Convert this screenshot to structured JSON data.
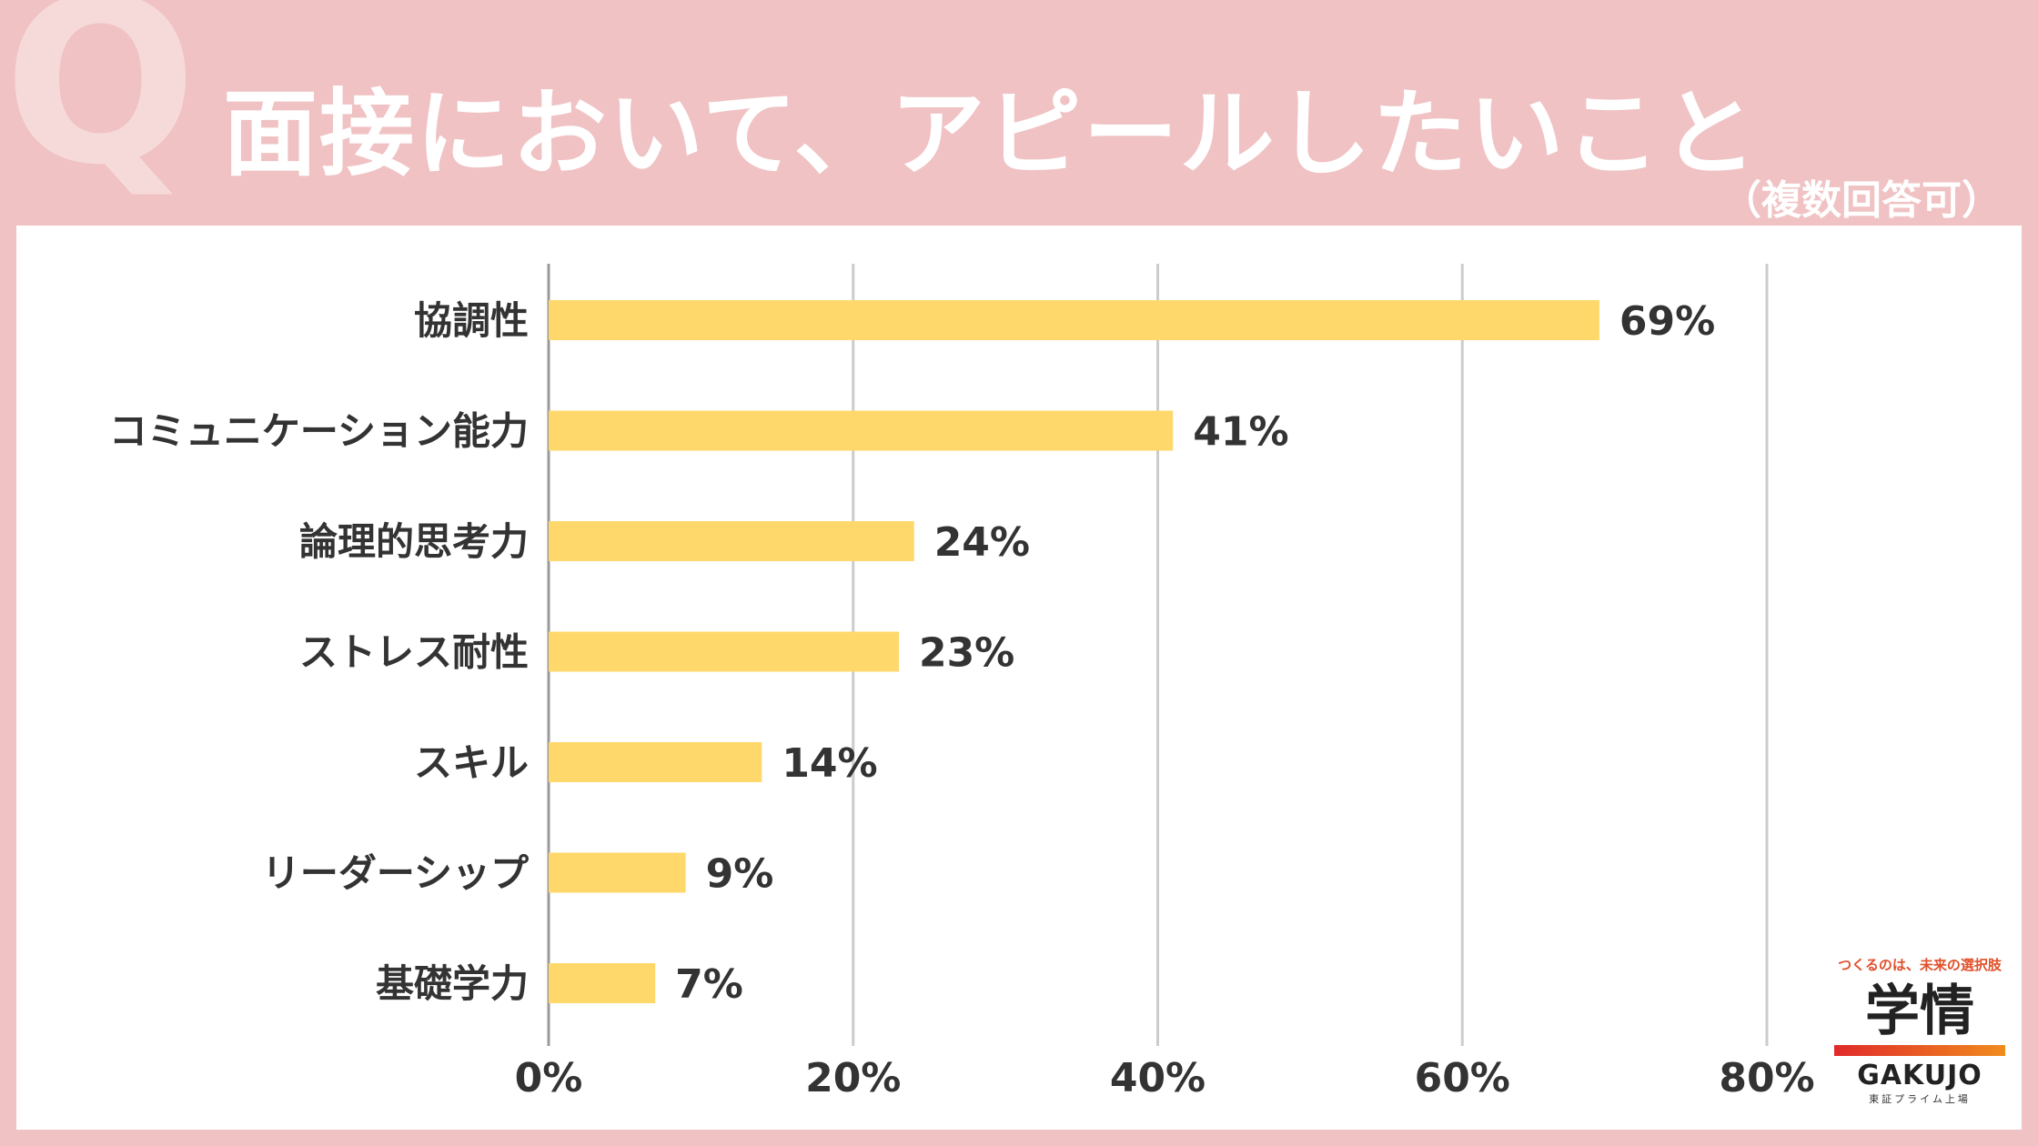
{
  "header": {
    "q_mark": "Q",
    "title": "面接において、アピールしたいこと",
    "subtitle": "（複数回答可）"
  },
  "chart_data": {
    "type": "bar",
    "orientation": "horizontal",
    "categories": [
      "協調性",
      "コミュニケーション能力",
      "論理的思考力",
      "ストレス耐性",
      "スキル",
      "リーダーシップ",
      "基礎学力"
    ],
    "values": [
      69,
      41,
      24,
      23,
      14,
      9,
      7
    ],
    "value_labels": [
      "69%",
      "41%",
      "24%",
      "23%",
      "14%",
      "9%",
      "7%"
    ],
    "xlim": [
      0,
      80
    ],
    "ticks": [
      0,
      20,
      40,
      60,
      80
    ],
    "tick_labels": [
      "0%",
      "20%",
      "40%",
      "60%",
      "80%"
    ],
    "grid": true,
    "bar_color": "#ffd86b"
  },
  "logo": {
    "tagline": "つくるのは、未来の選択肢",
    "kanji": "学情",
    "name": "GAKUJO",
    "sub": "東証プライム上場"
  }
}
